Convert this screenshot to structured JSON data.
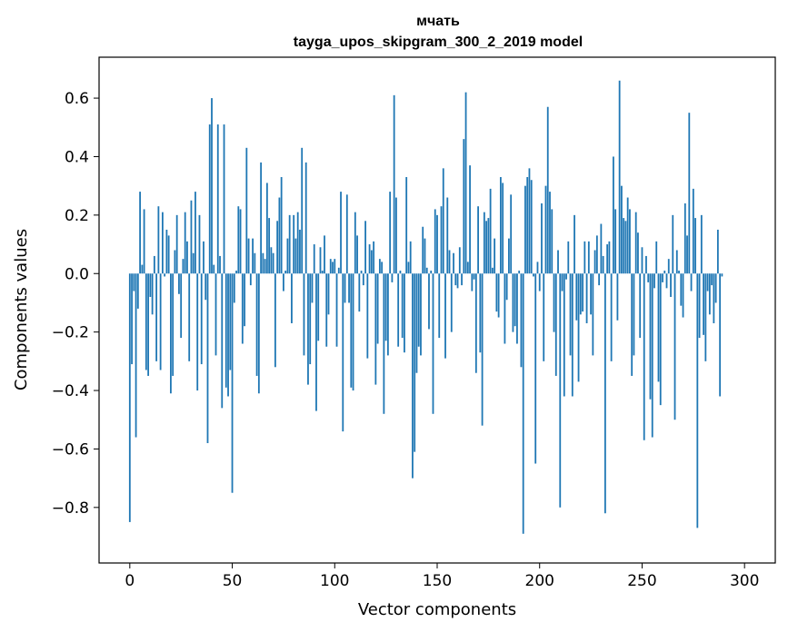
{
  "chart_data": {
    "type": "bar",
    "title_line1": "мчать",
    "title_line2": "tayga_upos_skipgram_300_2_2019 model",
    "xlabel": "Vector components",
    "ylabel": "Components values",
    "xlim": [
      -15,
      315
    ],
    "ylim": [
      -0.99,
      0.74
    ],
    "xticks": [
      0,
      50,
      100,
      150,
      200,
      250,
      300
    ],
    "xtick_labels": [
      "0",
      "50",
      "100",
      "150",
      "200",
      "250",
      "300"
    ],
    "yticks": [
      -0.8,
      -0.6,
      -0.4,
      -0.2,
      0.0,
      0.2,
      0.4,
      0.6
    ],
    "ytick_labels": [
      "−0.8",
      "−0.6",
      "−0.4",
      "−0.2",
      "0.0",
      "0.2",
      "0.4",
      "0.6"
    ],
    "bar_color": "#1f77b4",
    "values": [
      -0.85,
      -0.31,
      -0.06,
      -0.56,
      -0.12,
      0.28,
      0.03,
      0.22,
      -0.33,
      -0.35,
      -0.08,
      -0.14,
      0.06,
      -0.3,
      0.23,
      -0.33,
      0.21,
      -0.01,
      0.15,
      0.13,
      -0.41,
      -0.35,
      0.08,
      0.2,
      -0.07,
      -0.22,
      0.05,
      0.21,
      0.11,
      -0.3,
      0.25,
      0.07,
      0.28,
      -0.4,
      0.2,
      -0.31,
      0.11,
      -0.09,
      -0.58,
      0.51,
      0.6,
      0.03,
      -0.28,
      0.51,
      0.06,
      -0.46,
      0.51,
      -0.39,
      -0.42,
      -0.33,
      -0.75,
      -0.1,
      0.01,
      0.23,
      0.22,
      -0.24,
      -0.18,
      0.43,
      0.12,
      -0.04,
      0.12,
      0.07,
      -0.35,
      -0.41,
      0.38,
      0.07,
      0.05,
      0.31,
      0.19,
      0.09,
      0.07,
      -0.32,
      0.18,
      0.26,
      0.33,
      -0.06,
      0.01,
      0.12,
      0.2,
      -0.17,
      0.2,
      0.12,
      0.21,
      0.15,
      0.43,
      -0.28,
      0.38,
      -0.38,
      -0.31,
      -0.1,
      0.1,
      -0.47,
      -0.23,
      0.09,
      0.01,
      0.13,
      -0.25,
      -0.14,
      0.05,
      0.04,
      0.05,
      -0.25,
      0.02,
      0.28,
      -0.54,
      -0.1,
      0.27,
      -0.1,
      -0.39,
      -0.4,
      0.21,
      0.13,
      -0.13,
      0.01,
      -0.04,
      0.18,
      -0.29,
      0.1,
      0.08,
      0.11,
      -0.38,
      -0.24,
      0.05,
      0.04,
      -0.48,
      -0.23,
      -0.28,
      0.28,
      -0.03,
      0.61,
      0.26,
      -0.25,
      0.01,
      -0.22,
      -0.27,
      0.33,
      0.04,
      0.11,
      -0.7,
      -0.61,
      -0.34,
      -0.25,
      -0.28,
      0.16,
      0.12,
      0.02,
      -0.19,
      0.01,
      -0.48,
      0.22,
      0.2,
      -0.22,
      0.23,
      0.36,
      -0.29,
      0.26,
      0.08,
      -0.2,
      0.07,
      -0.04,
      -0.05,
      0.09,
      -0.04,
      0.46,
      0.62,
      0.04,
      0.37,
      -0.06,
      -0.02,
      -0.34,
      0.23,
      -0.27,
      -0.52,
      0.21,
      0.18,
      0.19,
      0.29,
      0.02,
      0.12,
      -0.13,
      -0.15,
      0.33,
      0.31,
      -0.24,
      -0.09,
      0.12,
      0.27,
      -0.2,
      -0.18,
      -0.24,
      0.01,
      -0.32,
      -0.89,
      0.3,
      0.33,
      0.36,
      0.32,
      -0.01,
      -0.65,
      0.04,
      -0.06,
      0.24,
      -0.3,
      0.3,
      0.57,
      0.28,
      0.22,
      -0.2,
      -0.35,
      0.08,
      -0.8,
      -0.06,
      -0.42,
      -0.02,
      0.11,
      -0.28,
      -0.42,
      0.2,
      -0.16,
      -0.37,
      -0.14,
      -0.13,
      0.11,
      -0.17,
      0.11,
      -0.14,
      -0.28,
      0.08,
      0.13,
      -0.04,
      0.17,
      0.06,
      -0.82,
      0.1,
      0.11,
      -0.3,
      0.4,
      0.22,
      -0.16,
      0.66,
      0.3,
      0.19,
      0.18,
      0.26,
      0.22,
      -0.35,
      -0.28,
      0.21,
      0.14,
      -0.22,
      0.09,
      -0.57,
      0.06,
      -0.03,
      -0.43,
      -0.56,
      -0.05,
      0.11,
      -0.37,
      -0.45,
      -0.03,
      0.01,
      -0.05,
      0.05,
      -0.08,
      0.2,
      -0.5,
      0.08,
      0.01,
      -0.11,
      -0.15,
      0.24,
      0.13,
      0.55,
      -0.06,
      0.29,
      0.19,
      -0.87,
      -0.22,
      0.2,
      -0.21,
      -0.3,
      -0.06,
      -0.14,
      -0.04,
      -0.17,
      -0.1,
      0.15,
      -0.42,
      -0.01
    ]
  }
}
